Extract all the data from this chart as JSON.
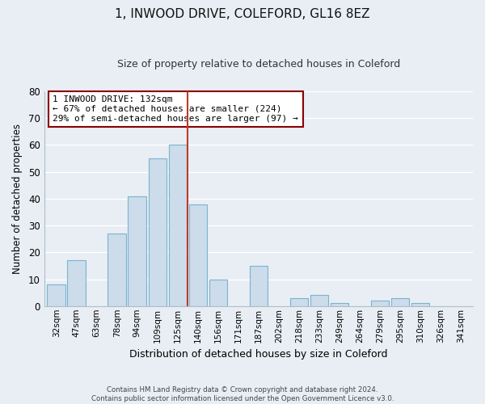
{
  "title": "1, INWOOD DRIVE, COLEFORD, GL16 8EZ",
  "subtitle": "Size of property relative to detached houses in Coleford",
  "xlabel": "Distribution of detached houses by size in Coleford",
  "ylabel": "Number of detached properties",
  "bar_labels": [
    "32sqm",
    "47sqm",
    "63sqm",
    "78sqm",
    "94sqm",
    "109sqm",
    "125sqm",
    "140sqm",
    "156sqm",
    "171sqm",
    "187sqm",
    "202sqm",
    "218sqm",
    "233sqm",
    "249sqm",
    "264sqm",
    "279sqm",
    "295sqm",
    "310sqm",
    "326sqm",
    "341sqm"
  ],
  "bar_values": [
    8,
    17,
    0,
    27,
    41,
    55,
    60,
    38,
    10,
    0,
    15,
    0,
    3,
    4,
    1,
    0,
    2,
    3,
    1,
    0,
    0
  ],
  "bar_color": "#ccdcea",
  "bar_edge_color": "#7ab4d0",
  "vline_x": 6.5,
  "vline_color": "#c0392b",
  "ylim": [
    0,
    80
  ],
  "yticks": [
    0,
    10,
    20,
    30,
    40,
    50,
    60,
    70,
    80
  ],
  "annotation_title": "1 INWOOD DRIVE: 132sqm",
  "annotation_line1": "← 67% of detached houses are smaller (224)",
  "annotation_line2": "29% of semi-detached houses are larger (97) →",
  "annotation_box_color": "#ffffff",
  "annotation_box_edge": "#8b0000",
  "footer_line1": "Contains HM Land Registry data © Crown copyright and database right 2024.",
  "footer_line2": "Contains public sector information licensed under the Open Government Licence v3.0.",
  "background_color": "#e8eef4",
  "grid_color": "#ffffff"
}
